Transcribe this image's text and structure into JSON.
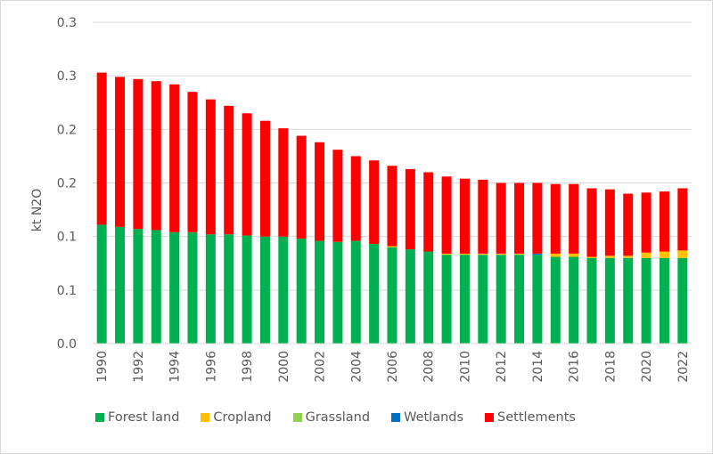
{
  "chart_data": {
    "type": "bar",
    "stacked": true,
    "title": "",
    "xlabel": "",
    "ylabel": "kt N2O",
    "ylim": [
      0,
      0.3
    ],
    "yticks": [
      0.0,
      0.05,
      0.1,
      0.15,
      0.2,
      0.25,
      0.3
    ],
    "ytick_labels": [
      "0.0",
      "0.1",
      "0.1",
      "0.2",
      "0.2",
      "0.3",
      "0.3"
    ],
    "grid": true,
    "legend_position": "bottom",
    "categories": [
      "1990",
      "1991",
      "1992",
      "1993",
      "1994",
      "1995",
      "1996",
      "1997",
      "1998",
      "1999",
      "2000",
      "2001",
      "2002",
      "2003",
      "2004",
      "2005",
      "2006",
      "2007",
      "2008",
      "2009",
      "2010",
      "2011",
      "2012",
      "2013",
      "2014",
      "2015",
      "2016",
      "2017",
      "2018",
      "2019",
      "2020",
      "2021",
      "2022"
    ],
    "xtick_labels": [
      "1990",
      "1992",
      "1994",
      "1996",
      "1998",
      "2000",
      "2002",
      "2004",
      "2006",
      "2008",
      "2010",
      "2012",
      "2014",
      "2016",
      "2018",
      "2020",
      "2022"
    ],
    "series": [
      {
        "name": "Forest land",
        "color": "#00b050",
        "values": [
          0.111,
          0.109,
          0.107,
          0.106,
          0.104,
          0.104,
          0.102,
          0.102,
          0.101,
          0.1,
          0.1,
          0.098,
          0.096,
          0.095,
          0.096,
          0.093,
          0.09,
          0.088,
          0.086,
          0.083,
          0.083,
          0.083,
          0.083,
          0.083,
          0.083,
          0.081,
          0.081,
          0.08,
          0.08,
          0.08,
          0.08,
          0.08,
          0.08
        ]
      },
      {
        "name": "Cropland",
        "color": "#ffc000",
        "values": [
          0,
          0,
          0,
          0,
          0,
          0,
          0,
          0,
          0,
          0,
          0,
          0,
          0,
          0,
          0,
          0,
          0.001,
          0,
          0,
          0.001,
          0.001,
          0.001,
          0.001,
          0.001,
          0,
          0.003,
          0.003,
          0.001,
          0.002,
          0.002,
          0.005,
          0.006,
          0.007
        ]
      },
      {
        "name": "Grassland",
        "color": "#92d050",
        "values": [
          0,
          0,
          0,
          0,
          0,
          0,
          0,
          0,
          0,
          0,
          0,
          0,
          0,
          0,
          0,
          0,
          0,
          0,
          0,
          0,
          0,
          0,
          0,
          0,
          0,
          0,
          0,
          0,
          0,
          0,
          0,
          0,
          0
        ]
      },
      {
        "name": "Wetlands",
        "color": "#0070c0",
        "values": [
          0,
          0,
          0,
          0,
          0,
          0,
          0,
          0,
          0,
          0,
          0,
          0,
          0,
          0,
          0,
          0,
          0,
          0,
          0,
          0,
          0,
          0,
          0,
          0,
          0.001,
          0,
          0,
          0,
          0,
          0,
          0,
          0,
          0
        ]
      },
      {
        "name": "Settlements",
        "color": "#ff0000",
        "values": [
          0.142,
          0.14,
          0.14,
          0.139,
          0.138,
          0.131,
          0.126,
          0.12,
          0.114,
          0.108,
          0.101,
          0.096,
          0.092,
          0.086,
          0.079,
          0.078,
          0.075,
          0.075,
          0.074,
          0.072,
          0.07,
          0.069,
          0.066,
          0.066,
          0.066,
          0.065,
          0.065,
          0.064,
          0.062,
          0.058,
          0.056,
          0.056,
          0.058
        ]
      }
    ]
  }
}
